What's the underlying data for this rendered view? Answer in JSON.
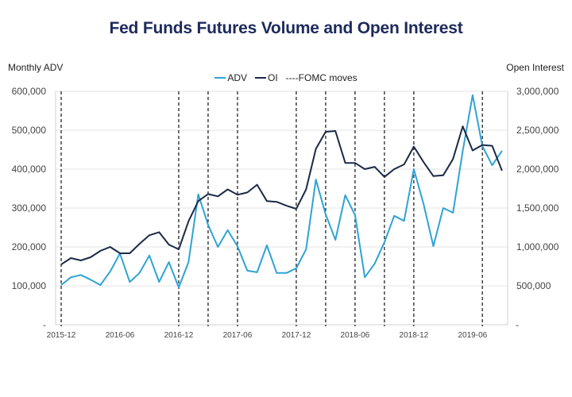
{
  "chart_data": {
    "type": "line",
    "title": "Fed Funds Futures Volume and Open Interest",
    "ylabel_left": "Monthly ADV",
    "ylabel_right": "Open Interest",
    "legend_position": "top-center",
    "grid": true,
    "y_left": {
      "range": [
        0,
        600000
      ],
      "ticks": [
        0,
        100000,
        200000,
        300000,
        400000,
        500000,
        600000
      ],
      "tick_labels": [
        "-",
        "100,000",
        "200,000",
        "300,000",
        "400,000",
        "500,000",
        "600,000"
      ]
    },
    "y_right": {
      "range": [
        0,
        3000000
      ],
      "ticks": [
        0,
        500000,
        1000000,
        1500000,
        2000000,
        2500000,
        3000000
      ],
      "tick_labels": [
        "-",
        "500,000",
        "1,000,000",
        "1,500,000",
        "2,000,000",
        "2,500,000",
        "3,000,000"
      ]
    },
    "x_tick_labels": [
      "2015-12",
      "2016-06",
      "2016-12",
      "2017-06",
      "2017-12",
      "2018-06",
      "2018-12",
      "2019-06"
    ],
    "x": [
      "2015-12",
      "2016-01",
      "2016-02",
      "2016-03",
      "2016-04",
      "2016-05",
      "2016-06",
      "2016-07",
      "2016-08",
      "2016-09",
      "2016-10",
      "2016-11",
      "2016-12",
      "2017-01",
      "2017-02",
      "2017-03",
      "2017-04",
      "2017-05",
      "2017-06",
      "2017-07",
      "2017-08",
      "2017-09",
      "2017-10",
      "2017-11",
      "2017-12",
      "2018-01",
      "2018-02",
      "2018-03",
      "2018-04",
      "2018-05",
      "2018-06",
      "2018-07",
      "2018-08",
      "2018-09",
      "2018-10",
      "2018-11",
      "2018-12",
      "2019-01",
      "2019-02",
      "2019-03",
      "2019-04",
      "2019-05",
      "2019-06",
      "2019-07",
      "2019-08",
      "2019-09"
    ],
    "series": [
      {
        "name": "ADV",
        "axis": "left",
        "color": "#2ea3d6",
        "values": [
          102000,
          122000,
          128000,
          116000,
          102000,
          137000,
          183000,
          110000,
          133000,
          178000,
          110000,
          161000,
          96000,
          161000,
          335000,
          257000,
          200000,
          243000,
          202000,
          139000,
          135000,
          204000,
          133000,
          133000,
          145000,
          194000,
          373000,
          284000,
          218000,
          333000,
          282000,
          122000,
          157000,
          212000,
          280000,
          267000,
          400000,
          310000,
          202000,
          300000,
          288000,
          447000,
          590000,
          459000,
          410000,
          447000
        ]
      },
      {
        "name": "OI",
        "axis": "right",
        "color": "#1b2a47",
        "values": [
          775000,
          857000,
          827000,
          867000,
          949000,
          1000000,
          918000,
          918000,
          1040000,
          1150000,
          1190000,
          1030000,
          969000,
          1330000,
          1590000,
          1680000,
          1650000,
          1740000,
          1670000,
          1700000,
          1800000,
          1590000,
          1580000,
          1530000,
          1490000,
          1740000,
          2260000,
          2480000,
          2490000,
          2080000,
          2080000,
          2000000,
          2030000,
          1900000,
          2000000,
          2060000,
          2290000,
          2090000,
          1910000,
          1920000,
          2130000,
          2550000,
          2240000,
          2310000,
          2300000,
          1980000
        ]
      }
    ],
    "fomc_moves": [
      "2015-12",
      "2016-12",
      "2017-03",
      "2017-06",
      "2017-12",
      "2018-03",
      "2018-06",
      "2018-09",
      "2018-12",
      "2019-07"
    ],
    "legend": [
      {
        "label": "ADV",
        "style": "solid",
        "color": "#2ea3d6"
      },
      {
        "label": "OI",
        "style": "solid",
        "color": "#1b2a47"
      },
      {
        "label": "----FOMC moves",
        "style": "dashed",
        "color": "#111111"
      }
    ]
  }
}
